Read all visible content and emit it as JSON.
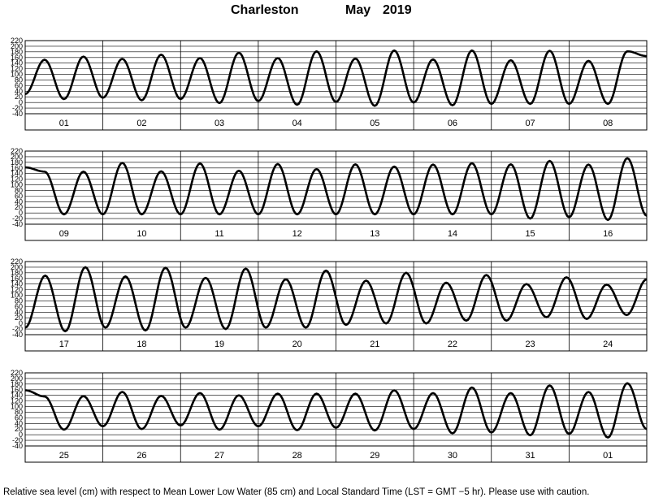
{
  "header": {
    "station": "Charleston",
    "month": "May",
    "year": "2019"
  },
  "caption": "Relative sea level (cm) with respect to Mean Lower Low Water (85 cm) and Local Standard Time (LST = GMT −5 hr). Please use with caution.",
  "chart_data": {
    "type": "line",
    "units": "cm",
    "ylim": [
      -40,
      220
    ],
    "yticks": [
      220,
      200,
      180,
      160,
      140,
      120,
      100,
      80,
      60,
      40,
      20,
      0,
      -20,
      -40
    ],
    "grid": true,
    "color": "#000000",
    "note": "Each day is one panel column; values are approximate high/low tide extremes read off the plot, listed in chronological order starting at 00:00 of the first day of each row.",
    "panels": [
      {
        "days": [
          "01",
          "02",
          "03",
          "04",
          "05",
          "06",
          "07",
          "08"
        ],
        "extrema": [
          30,
          152,
          12,
          163,
          17,
          155,
          8,
          170,
          12,
          158,
          -2,
          177,
          5,
          158,
          -8,
          182,
          2,
          156,
          -12,
          185,
          0,
          153,
          -10,
          185,
          -5,
          150,
          -5,
          184,
          -5,
          148,
          -5,
          182,
          165
        ]
      },
      {
        "days": [
          "09",
          "10",
          "11",
          "12",
          "13",
          "14",
          "15",
          "16"
        ],
        "extrema": [
          162,
          147,
          -5,
          147,
          -5,
          178,
          -5,
          148,
          -5,
          176,
          -5,
          150,
          -5,
          174,
          -5,
          156,
          -5,
          173,
          -5,
          165,
          -5,
          172,
          -5,
          177,
          -5,
          173,
          -20,
          185,
          -15,
          172,
          -25,
          195,
          -10
        ]
      },
      {
        "days": [
          "17",
          "18",
          "19",
          "20",
          "21",
          "22",
          "23",
          "24"
        ],
        "extrema": [
          -15,
          170,
          -28,
          200,
          -15,
          167,
          -25,
          198,
          -15,
          162,
          -20,
          195,
          -15,
          157,
          -15,
          188,
          -5,
          152,
          0,
          180,
          0,
          145,
          10,
          172,
          10,
          140,
          22,
          164,
          16,
          138,
          30,
          157
        ]
      },
      {
        "days": [
          "25",
          "26",
          "27",
          "28",
          "29",
          "30",
          "31",
          "01"
        ],
        "extrema": [
          158,
          136,
          18,
          137,
          30,
          152,
          20,
          138,
          33,
          148,
          18,
          140,
          30,
          146,
          16,
          146,
          25,
          146,
          15,
          158,
          20,
          148,
          5,
          168,
          8,
          148,
          -2,
          175,
          3,
          152,
          -10,
          183,
          20
        ]
      }
    ]
  }
}
